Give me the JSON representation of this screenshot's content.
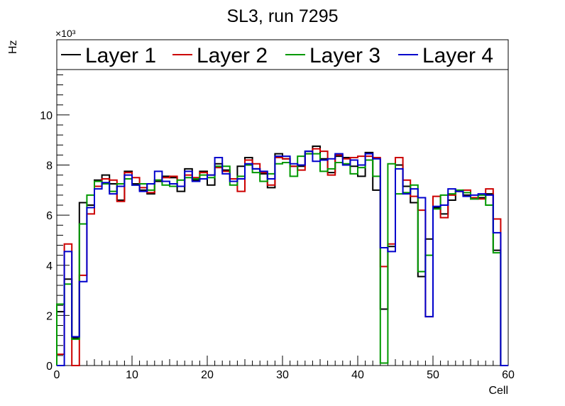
{
  "chart_data": {
    "type": "line",
    "title": "SL3, run 7295",
    "xlabel": "Cell",
    "ylabel": "Hz",
    "y_multiplier": "×10³",
    "xlim": [
      0,
      60
    ],
    "ylim": [
      0,
      13000
    ],
    "x_ticks": [
      0,
      10,
      20,
      30,
      40,
      50,
      60
    ],
    "y_ticks": [
      0,
      2,
      4,
      6,
      8,
      10
    ],
    "legend_position": "top",
    "bin_edges_start": 0,
    "bin_width": 1,
    "series": [
      {
        "name": "Layer 1",
        "color": "#000000",
        "values": [
          2150,
          3450,
          1100,
          6500,
          6400,
          7400,
          7600,
          7250,
          6600,
          7750,
          7250,
          7000,
          6850,
          7350,
          7550,
          7500,
          6950,
          7850,
          7400,
          7750,
          7200,
          8050,
          7800,
          7450,
          7950,
          8300,
          7850,
          7650,
          7100,
          8450,
          8250,
          7950,
          7950,
          8550,
          8750,
          8250,
          7700,
          8350,
          8300,
          7950,
          7550,
          8500,
          7000,
          2250,
          4750,
          8000,
          7150,
          6500,
          3550,
          5050,
          6300,
          6050,
          6600,
          6950,
          6800,
          6650,
          6700,
          6850,
          4600,
          0
        ]
      },
      {
        "name": "Layer 2",
        "color": "#cc0000",
        "values": [
          450,
          4850,
          0,
          3600,
          6050,
          7150,
          7450,
          7400,
          6550,
          7700,
          7500,
          7100,
          6900,
          7400,
          7500,
          7550,
          7150,
          7600,
          7500,
          7700,
          7600,
          7900,
          7750,
          7450,
          6950,
          8200,
          8050,
          7700,
          7200,
          8300,
          8250,
          7950,
          7800,
          8450,
          8650,
          8550,
          7600,
          8400,
          8250,
          8300,
          8350,
          8350,
          8300,
          3950,
          4850,
          8300,
          7400,
          6750,
          6200,
          1950,
          6750,
          5900,
          6800,
          6950,
          7000,
          6700,
          6650,
          7050,
          5850,
          0
        ]
      },
      {
        "name": "Layer 3",
        "color": "#009900",
        "values": [
          2450,
          3250,
          1050,
          5650,
          6800,
          7350,
          7250,
          6950,
          7250,
          7450,
          7200,
          7250,
          7000,
          7400,
          7200,
          7150,
          7400,
          7500,
          7450,
          7600,
          7500,
          7950,
          7950,
          7200,
          7550,
          8000,
          7700,
          7350,
          7650,
          8050,
          8100,
          7550,
          8350,
          8450,
          8450,
          7750,
          7850,
          8100,
          8050,
          7650,
          7900,
          8200,
          7550,
          100,
          8050,
          6850,
          6900,
          7200,
          3750,
          4400,
          6250,
          6800,
          6850,
          7000,
          6900,
          6650,
          6800,
          6400,
          4500,
          0
        ]
      },
      {
        "name": "Layer 4",
        "color": "#0000cc",
        "values": [
          0,
          4550,
          1150,
          3350,
          6300,
          7050,
          7300,
          6850,
          7150,
          7600,
          7200,
          6950,
          7250,
          7750,
          7350,
          7250,
          7150,
          7750,
          7350,
          7450,
          7600,
          8300,
          7650,
          7350,
          7450,
          8050,
          7850,
          7750,
          7450,
          8350,
          8350,
          8050,
          8000,
          8550,
          8150,
          8200,
          8250,
          8450,
          8000,
          8200,
          8000,
          8450,
          8250,
          4700,
          4550,
          7850,
          6850,
          7050,
          6700,
          1950,
          6350,
          6400,
          7050,
          6950,
          6750,
          6800,
          6850,
          6800,
          5300,
          0
        ]
      }
    ]
  }
}
